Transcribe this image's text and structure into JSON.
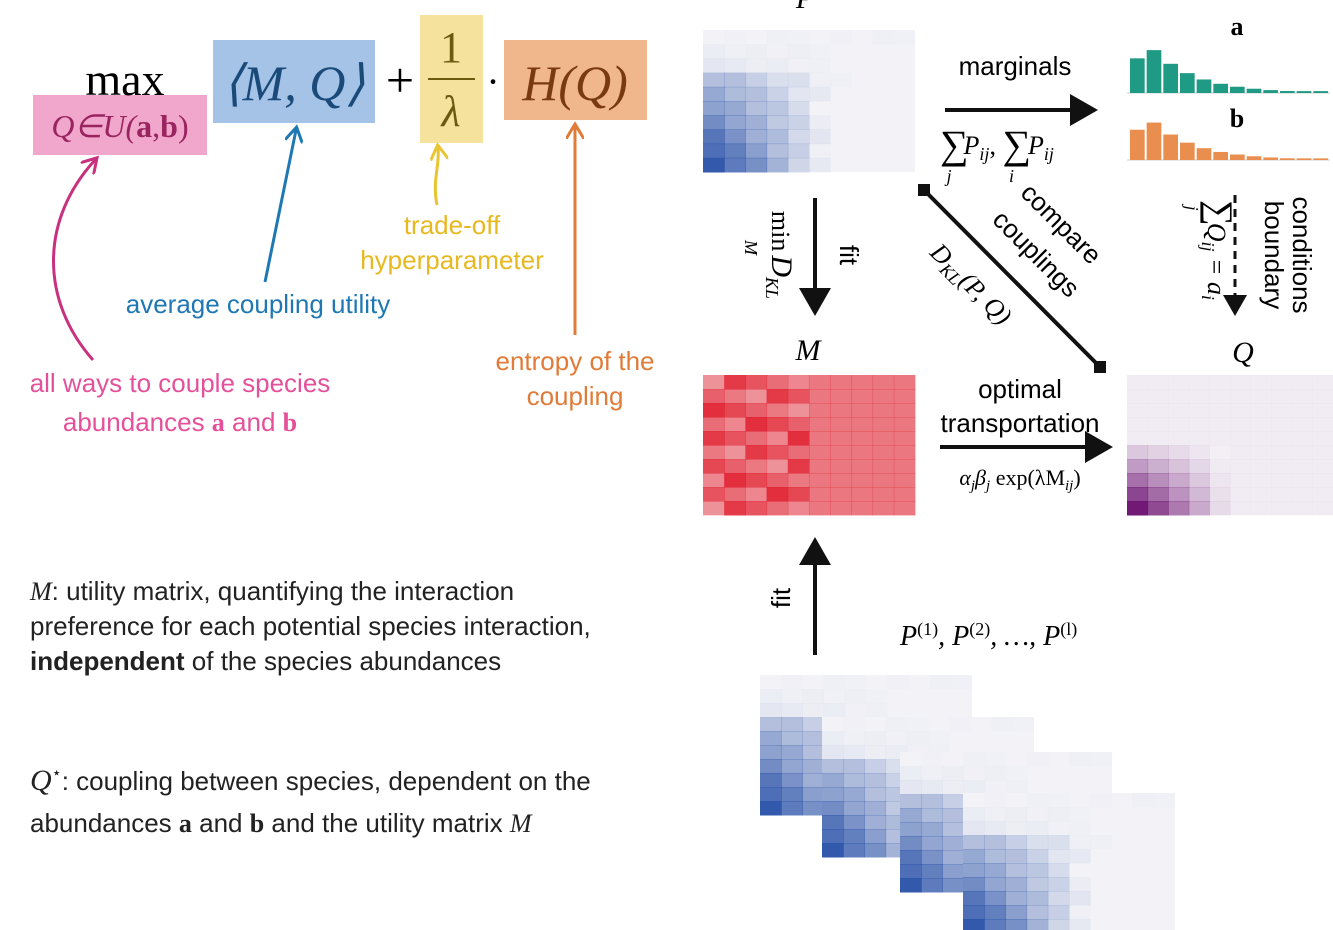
{
  "formula": {
    "max": "max",
    "constraint": [
      "Q∈U(",
      "a",
      ",",
      "b",
      ")"
    ],
    "inner": "⟨M, Q⟩",
    "plus": "+",
    "num": "1",
    "den": "λ",
    "dot": "·",
    "entropy": "H(Q)"
  },
  "annotations": {
    "tradeoff": [
      "trade-off",
      "hyperparameter"
    ],
    "utility": "average coupling utility",
    "entropy": [
      "entropy of the",
      "coupling"
    ],
    "ways": [
      "all ways to couple species",
      "abundances ",
      "a",
      " and ",
      "b"
    ]
  },
  "diagram": {
    "P": "P",
    "marginals": "marginals",
    "sums": [
      "∑",
      "j",
      "P",
      "ij",
      ", ",
      "∑",
      "i",
      "P",
      "ij"
    ],
    "a": "a",
    "b": "b",
    "fit_top": "fit",
    "min": "min",
    "min_sub": "M",
    "dkl": "D",
    "dkl_sub": "KL",
    "compare": [
      "compare",
      "couplings"
    ],
    "dklpq": [
      "D",
      "KL",
      "(P, Q)"
    ],
    "boundary": [
      "boundary",
      "conditions"
    ],
    "bsum": [
      "∑",
      "j",
      "Q",
      "ij",
      " = a",
      "i"
    ],
    "M": "M",
    "Q": "Q",
    "ot": [
      "optimal",
      "transportation"
    ],
    "otf": [
      "α",
      "j",
      "β",
      "j",
      " exp(λM",
      "ij",
      ")"
    ],
    "fit_bottom": "fit",
    "series": [
      "P",
      "(1)",
      ", P",
      "(2)",
      ", …, P",
      "(l)"
    ]
  },
  "legend": {
    "m": [
      "M",
      ": utility matrix, quantifying the interaction",
      "preference for each potential species interaction,",
      "independent",
      " of the species abundances"
    ],
    "q": [
      "Q",
      "⋆",
      ": coupling between species, dependent on the",
      "abundances ",
      "a",
      " and ",
      "b",
      " and the utility matrix ",
      "M"
    ]
  }
}
